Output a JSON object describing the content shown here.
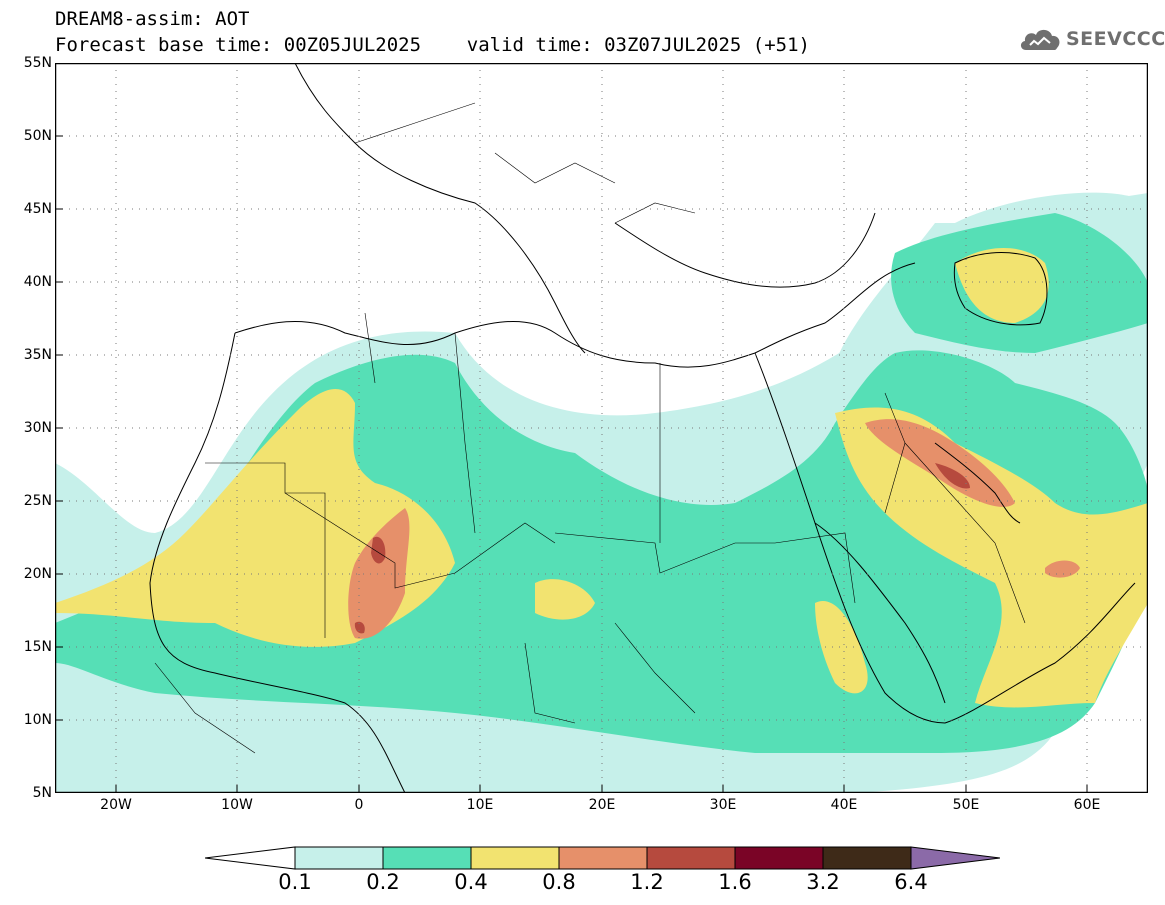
{
  "title": {
    "line1": "DREAM8-assim: AOT",
    "line2": "Forecast base time: 00Z05JUL2025    valid time: 03Z07JUL2025 (+51)"
  },
  "logo": {
    "text": "SEEVCCC",
    "icon": "cloud-icon"
  },
  "map": {
    "lat_labels": [
      "55N",
      "50N",
      "45N",
      "40N",
      "35N",
      "30N",
      "25N",
      "20N",
      "15N",
      "10N",
      "5N"
    ],
    "lon_labels": [
      "20W",
      "10W",
      "0",
      "10E",
      "20E",
      "30E",
      "40E",
      "50E",
      "60E"
    ],
    "lon_range": [
      -25,
      65
    ],
    "lat_range": [
      5,
      55
    ]
  },
  "colorbar": {
    "labels": [
      "0.1",
      "0.2",
      "0.4",
      "0.8",
      "1.2",
      "1.6",
      "3.2",
      "6.4"
    ],
    "colors": [
      "#ffffff",
      "#c6f0ea",
      "#56dfb6",
      "#f2e370",
      "#e6906a",
      "#b64a3e",
      "#7a0426",
      "#3e2a18",
      "#8b6aa8"
    ]
  },
  "aot_colors": {
    "very_low": "#c6f0ea",
    "low": "#56dfb6",
    "moderate": "#f2e370",
    "high": "#e6906a",
    "very_high": "#b64a3e"
  }
}
